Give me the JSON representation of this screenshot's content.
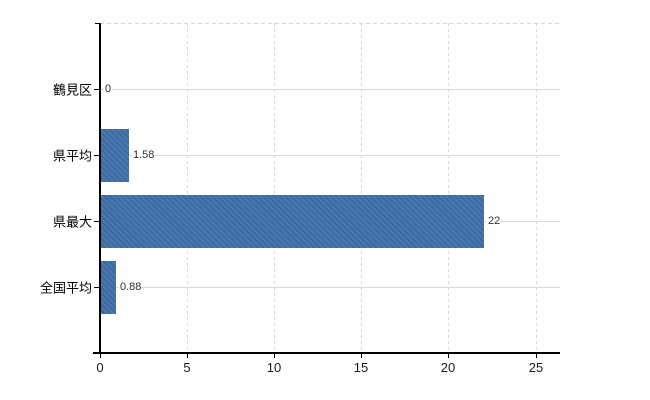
{
  "chart_data": {
    "type": "bar",
    "orientation": "horizontal",
    "title": "",
    "categories": [
      "鶴見区",
      "県平均",
      "県最大",
      "全国平均"
    ],
    "values": [
      0,
      1.58,
      22,
      0.88
    ],
    "value_labels": [
      "0",
      "1.58",
      "22",
      "0.88"
    ],
    "xlabel": "",
    "ylabel": "",
    "xlim": [
      0,
      26.4
    ],
    "xticks": [
      0,
      5,
      10,
      15,
      20,
      25
    ],
    "xtick_labels": [
      "0",
      "5",
      "10",
      "15",
      "20",
      "25"
    ],
    "grid": true,
    "legend": "none",
    "bar_color": "#3e6fa9",
    "gridline_color": "#d6dcd5",
    "axis_color": "#000000",
    "tick_label_color": "#1a1a1a",
    "value_label_color": "#303030",
    "background": "#ffffff"
  }
}
